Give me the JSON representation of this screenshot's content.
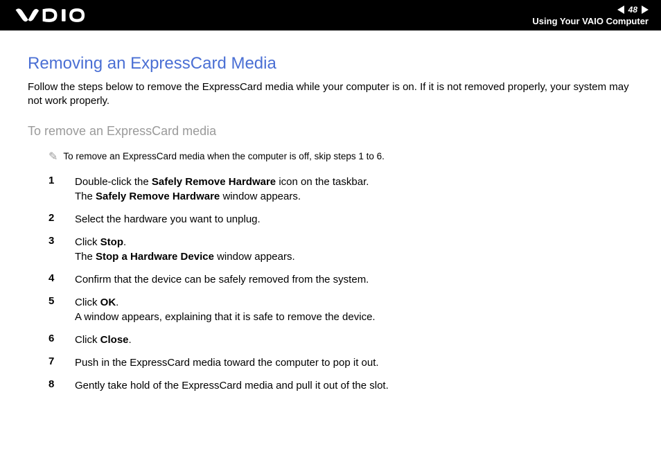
{
  "header": {
    "page_number": "48",
    "section": "Using Your VAIO Computer"
  },
  "content": {
    "title": "Removing an ExpressCard Media",
    "intro": "Follow the steps below to remove the ExpressCard media while your computer is on. If it is not removed properly, your system may not work properly.",
    "subhead": "To remove an ExpressCard media",
    "note": "To remove an ExpressCard media when the computer is off, skip steps 1 to 6.",
    "steps": [
      {
        "n": "1",
        "body": "Double-click the <span class='b'>Safely Remove Hardware</span> icon on the taskbar.<br>The <span class='b'>Safely Remove Hardware</span> window appears."
      },
      {
        "n": "2",
        "body": "Select the hardware you want to unplug."
      },
      {
        "n": "3",
        "body": "Click <span class='b'>Stop</span>.<br>The <span class='b'>Stop a Hardware Device</span> window appears."
      },
      {
        "n": "4",
        "body": "Confirm that the device can be safely removed from the system."
      },
      {
        "n": "5",
        "body": "Click <span class='b'>OK</span>.<br>A window appears, explaining that it is safe to remove the device."
      },
      {
        "n": "6",
        "body": "Click <span class='b'>Close</span>."
      },
      {
        "n": "7",
        "body": "Push in the ExpressCard media toward the computer to pop it out."
      },
      {
        "n": "8",
        "body": "Gently take hold of the ExpressCard media and pull it out of the slot."
      }
    ]
  },
  "colors": {
    "header_bg": "#000000",
    "header_fg": "#ffffff",
    "title_color": "#4a6fd4",
    "subhead_color": "#9a9a9a",
    "body_color": "#000000",
    "background": "#ffffff"
  },
  "typography": {
    "title_size_pt": 18,
    "subhead_size_pt": 14,
    "body_size_pt": 11,
    "note_size_pt": 10,
    "font_family": "Arial"
  },
  "icons": {
    "note_icon": "✎"
  }
}
